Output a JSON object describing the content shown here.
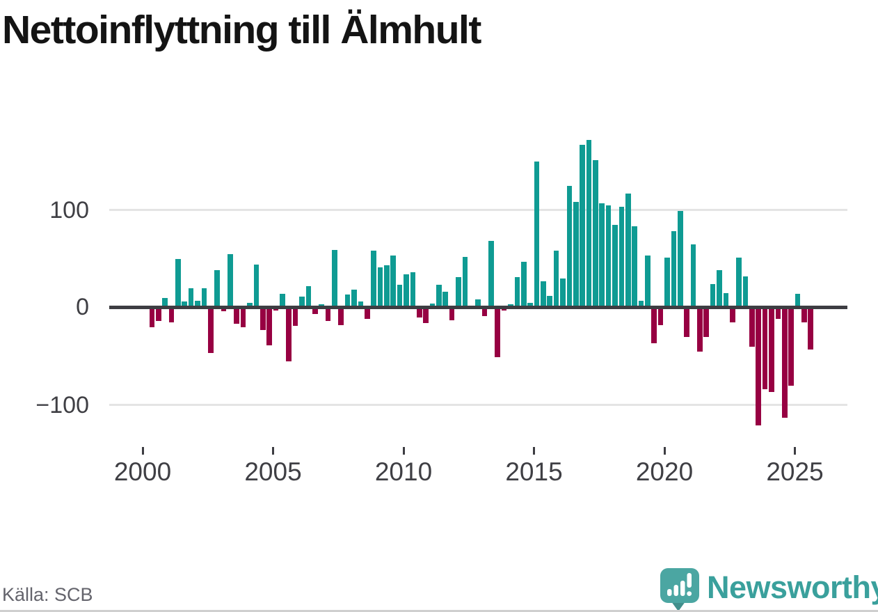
{
  "header": {
    "title": "Nettoinflyttning till Älmhult"
  },
  "footer": {
    "source": "Källa: SCB",
    "brand": {
      "name": "Newsworthy",
      "icon": "speech-bubble-bar-chart-icon",
      "text_color": "#3aa09c",
      "bubble_color": "#4ba6a2",
      "bubble_tail_color": "#418f8c",
      "glyph_color": "#ffffff"
    }
  },
  "chart_data": {
    "type": "bar",
    "title": "Nettoinflyttning till Älmhult",
    "frequency": "quarterly",
    "x_start_quarter": "2000-Q2",
    "x_end_quarter": "2025-Q3",
    "values": [
      -20,
      -14,
      10,
      -15,
      50,
      6,
      20,
      7,
      20,
      -47,
      38,
      -4,
      55,
      -17,
      -20,
      5,
      44,
      -23,
      -39,
      -3,
      14,
      -55,
      -19,
      11,
      22,
      -7,
      3,
      -14,
      59,
      -18,
      13,
      18,
      6,
      -12,
      58,
      41,
      43,
      53,
      23,
      34,
      36,
      -10,
      -16,
      4,
      23,
      16,
      -13,
      31,
      52,
      0,
      8,
      -9,
      68,
      -51,
      -3,
      3,
      31,
      47,
      5,
      150,
      27,
      12,
      58,
      30,
      125,
      108,
      167,
      172,
      151,
      107,
      105,
      85,
      103,
      117,
      83,
      7,
      53,
      -37,
      -18,
      51,
      78,
      99,
      -30,
      65,
      -45,
      -30,
      24,
      38,
      15,
      -15,
      51,
      32,
      -40,
      -121,
      -84,
      -87,
      -12,
      -113,
      -80,
      14,
      -15,
      -43
    ],
    "x_tick_labels": [
      "2000",
      "2005",
      "2010",
      "2015",
      "2020",
      "2025"
    ],
    "y_ticks": [
      100,
      0,
      -100
    ],
    "y_tick_labels": [
      "100",
      "0",
      "−100"
    ],
    "ylim": [
      -135,
      185
    ],
    "grid": "horizontal gridlines at +100 and -100, dark baseline at 0",
    "legend": "none",
    "series_colors": {
      "positive": "#0f9b93",
      "negative": "#970042"
    }
  }
}
